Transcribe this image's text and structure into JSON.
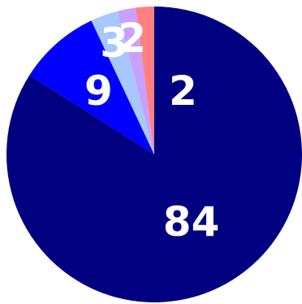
{
  "chart_data": {
    "type": "pie",
    "title": "",
    "start": "top",
    "direction": "clockwise",
    "slices": [
      {
        "value": 84,
        "label": "84",
        "color": "#000080"
      },
      {
        "value": 9,
        "label": "9",
        "color": "#0000FF"
      },
      {
        "value": 3,
        "label": "3",
        "color": "#A6C8FF"
      },
      {
        "value": 2,
        "label": "2",
        "color": "#C8A0FF"
      },
      {
        "value": 2,
        "label": "2",
        "color": "#FF8080"
      }
    ]
  }
}
